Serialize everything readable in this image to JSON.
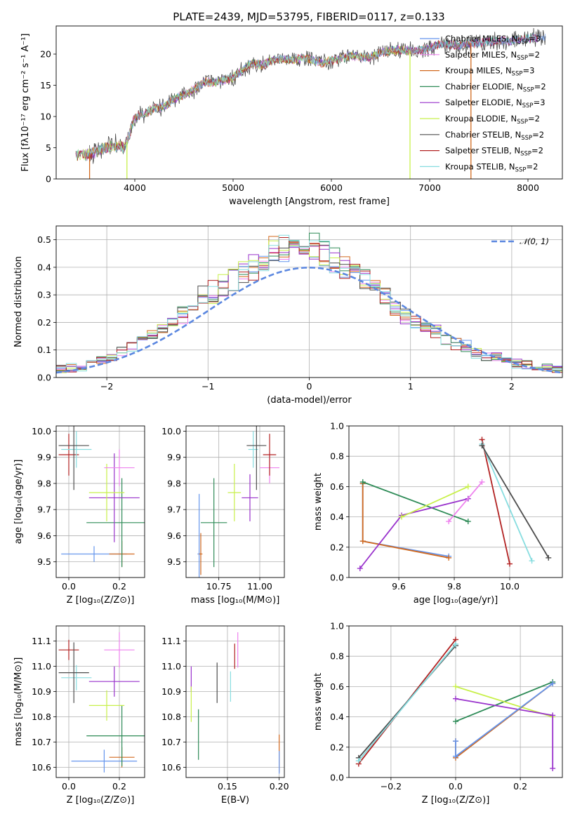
{
  "title": "PLATE=2439, MJD=53795, FIBERID=0117, z=0.133",
  "series": [
    {
      "name": "Chabrier MILES, N<sub>SSP</sub>=3",
      "label": "Chabrier MILES, N",
      "sub": "SSP",
      "suffix": "=3",
      "color": "#6495ed"
    },
    {
      "name": "Salpeter MILES, N<sub>SSP</sub>=2",
      "label": "Salpeter MILES, N",
      "sub": "SSP",
      "suffix": "=2",
      "color": "#ee82ee"
    },
    {
      "name": "Kroupa MILES, N<sub>SSP</sub>=3",
      "label": "Kroupa MILES, N",
      "sub": "SSP",
      "suffix": "=3",
      "color": "#d2691e"
    },
    {
      "name": "Chabrier ELODIE, N<sub>SSP</sub>=2",
      "label": "Chabrier ELODIE, N",
      "sub": "SSP",
      "suffix": "=2",
      "color": "#2e8b57"
    },
    {
      "name": "Salpeter ELODIE, N<sub>SSP</sub>=3",
      "label": "Salpeter ELODIE, N",
      "sub": "SSP",
      "suffix": "=3",
      "color": "#9932cc"
    },
    {
      "name": "Kroupa ELODIE, N<sub>SSP</sub>=2",
      "label": "Kroupa ELODIE, N",
      "sub": "SSP",
      "suffix": "=2",
      "color": "#c8f04a"
    },
    {
      "name": "Chabrier STELIB, N<sub>SSP</sub>=2",
      "label": "Chabrier STELIB, N",
      "sub": "SSP",
      "suffix": "=2",
      "color": "#4d4d4d"
    },
    {
      "name": "Salpeter STELIB, N<sub>SSP</sub>=2",
      "label": "Salpeter STELIB, N",
      "sub": "SSP",
      "suffix": "=2",
      "color": "#b22222"
    },
    {
      "name": "Kroupa STELIB, N<sub>SSP</sub>=2",
      "label": "Kroupa STELIB, N",
      "sub": "SSP",
      "suffix": "=2",
      "color": "#87dde0"
    }
  ],
  "chart_data": [
    {
      "id": "spectrum",
      "type": "line",
      "xlabel": "wavelength [Angstrom, rest frame]",
      "ylabel": "Flux [fλ10⁻¹⁷ erg cm⁻² s⁻¹ A⁻¹]",
      "xlim": [
        3200,
        8350
      ],
      "ylim": [
        0,
        24.5
      ],
      "xticks": [
        4000,
        5000,
        6000,
        7000,
        8000
      ],
      "yticks": [
        0,
        5,
        10,
        15,
        20
      ],
      "grid": false,
      "legend_position": "top-right",
      "continuum": {
        "x": [
          3400,
          3500,
          3600,
          3700,
          3800,
          3900,
          4000,
          4100,
          4200,
          4300,
          4400,
          4500,
          4600,
          4700,
          4800,
          4900,
          5000,
          5100,
          5200,
          5300,
          5400,
          5500,
          5600,
          5700,
          5800,
          5900,
          6000,
          6100,
          6200,
          6300,
          6400,
          6500,
          6600,
          6700,
          6800,
          6900,
          7000,
          7100,
          7200,
          7300,
          7400,
          7500,
          7600,
          7700,
          7800,
          7900,
          8000,
          8100
        ],
        "y": [
          3.8,
          3.9,
          4.3,
          5.0,
          5.3,
          5.0,
          9.8,
          10.5,
          11.3,
          11.6,
          12.8,
          13.5,
          14.3,
          15.5,
          15.5,
          15.8,
          16.2,
          17.5,
          18.5,
          18.3,
          19.0,
          19.2,
          19.0,
          19.4,
          19.2,
          18.5,
          19.0,
          19.3,
          19.8,
          19.5,
          19.5,
          20.2,
          20.5,
          20.7,
          20.5,
          20.7,
          21.0,
          21.5,
          21.5,
          21.3,
          21.7,
          21.8,
          22.0,
          22.0,
          22.1,
          22.3,
          22.5,
          22.7
        ]
      },
      "data_extent": [
        3550,
        7550
      ],
      "dropouts": [
        {
          "x": 3540,
          "series": "Kroupa MILES, N<sub>SSP</sub>=3"
        },
        {
          "x": 3920,
          "series": "Kroupa ELODIE, N<sub>SSP</sub>=2"
        },
        {
          "x": 6800,
          "series": "Kroupa ELODIE, N<sub>SSP</sub>=2"
        },
        {
          "x": 7420,
          "series": "Kroupa MILES, N<sub>SSP</sub>=3"
        }
      ]
    },
    {
      "id": "residuals",
      "type": "histogram",
      "xlabel": "(data-model)/error",
      "ylabel": "Normed distribution",
      "xlim": [
        -2.5,
        2.5
      ],
      "ylim": [
        0,
        0.55
      ],
      "xticks": [
        -2,
        -1,
        0,
        1,
        2
      ],
      "yticks": [
        0.0,
        0.1,
        0.2,
        0.3,
        0.4,
        0.5
      ],
      "grid": true,
      "legend_position": "top-right",
      "reference_curve": {
        "name": "𝒩(0, 1)",
        "mean": 0,
        "sigma": 1,
        "color": "#5b87e0"
      },
      "bins": [
        -2.5,
        -2.4,
        -2.3,
        -2.2,
        -2.1,
        -2.0,
        -1.9,
        -1.8,
        -1.7,
        -1.6,
        -1.5,
        -1.4,
        -1.3,
        -1.2,
        -1.1,
        -1.0,
        -0.9,
        -0.8,
        -0.7,
        -0.6,
        -0.5,
        -0.4,
        -0.3,
        -0.2,
        -0.1,
        0.0,
        0.1,
        0.2,
        0.3,
        0.4,
        0.5,
        0.6,
        0.7,
        0.8,
        0.9,
        1.0,
        1.1,
        1.2,
        1.3,
        1.4,
        1.5,
        1.6,
        1.7,
        1.8,
        1.9,
        2.0,
        2.1,
        2.2,
        2.3,
        2.4,
        2.5
      ],
      "base_density": [
        0.03,
        0.035,
        0.04,
        0.05,
        0.06,
        0.07,
        0.09,
        0.11,
        0.13,
        0.16,
        0.18,
        0.2,
        0.23,
        0.26,
        0.29,
        0.31,
        0.33,
        0.36,
        0.38,
        0.4,
        0.43,
        0.45,
        0.46,
        0.47,
        0.48,
        0.47,
        0.45,
        0.42,
        0.4,
        0.37,
        0.35,
        0.32,
        0.29,
        0.25,
        0.22,
        0.2,
        0.18,
        0.17,
        0.14,
        0.12,
        0.11,
        0.09,
        0.08,
        0.07,
        0.06,
        0.05,
        0.045,
        0.04,
        0.035,
        0.03
      ]
    },
    {
      "id": "age-vs-Z",
      "type": "scatter",
      "xlabel": "Z [log₁₀(Z/Z⊙)]",
      "ylabel": "age  [log₁₀(age/yr)]",
      "xlim": [
        -0.05,
        0.3
      ],
      "ylim": [
        9.44,
        10.02
      ],
      "xticks": [
        0.0,
        0.2
      ],
      "yticks": [
        9.5,
        9.6,
        9.7,
        9.8,
        9.9,
        10.0
      ],
      "grid": true,
      "points": [
        {
          "series": "Chabrier MILES, N<sub>SSP</sub>=3",
          "x": 0.1,
          "y": 9.53,
          "xerr": 0.13,
          "yerr": 0.03
        },
        {
          "series": "Kroupa MILES, N<sub>SSP</sub>=3",
          "x": 0.21,
          "y": 9.53,
          "xerr": 0.05,
          "yerr": 0.05
        },
        {
          "series": "Chabrier ELODIE, N<sub>SSP</sub>=2",
          "x": 0.21,
          "y": 9.65,
          "xerr": 0.14,
          "yerr": 0.17
        },
        {
          "series": "Salpeter ELODIE, N<sub>SSP</sub>=3",
          "x": 0.18,
          "y": 9.745,
          "xerr": 0.1,
          "yerr": 0.17
        },
        {
          "series": "Kroupa ELODIE, N<sub>SSP</sub>=2",
          "x": 0.15,
          "y": 9.765,
          "xerr": 0.07,
          "yerr": 0.11
        },
        {
          "series": "Salpeter MILES, N<sub>SSP</sub>=2",
          "x": 0.2,
          "y": 9.86,
          "xerr": 0.06,
          "yerr": 0.07
        },
        {
          "series": "Salpeter STELIB, N<sub>SSP</sub>=2",
          "x": 0.0,
          "y": 9.91,
          "xerr": 0.04,
          "yerr": 0.08
        },
        {
          "series": "Kroupa STELIB, N<sub>SSP</sub>=2",
          "x": 0.03,
          "y": 9.93,
          "xerr": 0.06,
          "yerr": 0.07
        },
        {
          "series": "Chabrier STELIB, N<sub>SSP</sub>=2",
          "x": 0.02,
          "y": 9.945,
          "xerr": 0.06,
          "yerr": 0.17
        }
      ]
    },
    {
      "id": "age-vs-mass",
      "type": "scatter",
      "xlabel": "mass [log₁₀(M/M⊙)]",
      "ylabel": "",
      "xlim": [
        10.55,
        11.15
      ],
      "ylim": [
        9.44,
        10.02
      ],
      "xticks": [
        10.75,
        11.0
      ],
      "yticks": [
        9.5,
        9.6,
        9.7,
        9.8,
        9.9,
        10.0
      ],
      "grid": true,
      "points": [
        {
          "series": "Chabrier MILES, N<sub>SSP</sub>=3",
          "x": 10.63,
          "y": 9.53,
          "xerr": 0.01,
          "yerr": 0.23
        },
        {
          "series": "Kroupa MILES, N<sub>SSP</sub>=3",
          "x": 10.64,
          "y": 9.53,
          "xerr": 0.01,
          "yerr": 0.08
        },
        {
          "series": "Chabrier ELODIE, N<sub>SSP</sub>=2",
          "x": 10.72,
          "y": 9.65,
          "xerr": 0.08,
          "yerr": 0.17
        },
        {
          "series": "Salpeter ELODIE, N<sub>SSP</sub>=3",
          "x": 10.94,
          "y": 9.745,
          "xerr": 0.05,
          "yerr": 0.09
        },
        {
          "series": "Kroupa ELODIE, N<sub>SSP</sub>=2",
          "x": 10.845,
          "y": 9.765,
          "xerr": 0.04,
          "yerr": 0.11
        },
        {
          "series": "Salpeter MILES, N<sub>SSP</sub>=2",
          "x": 11.06,
          "y": 9.86,
          "xerr": 0.06,
          "yerr": 0.06
        },
        {
          "series": "Salpeter STELIB, N<sub>SSP</sub>=2",
          "x": 11.06,
          "y": 9.91,
          "xerr": 0.04,
          "yerr": 0.08
        },
        {
          "series": "Kroupa STELIB, N<sub>SSP</sub>=2",
          "x": 10.96,
          "y": 9.93,
          "xerr": 0.03,
          "yerr": 0.07
        },
        {
          "series": "Chabrier STELIB, N<sub>SSP</sub>=2",
          "x": 10.98,
          "y": 9.945,
          "xerr": 0.06,
          "yerr": 0.17
        }
      ]
    },
    {
      "id": "weight-vs-age",
      "type": "line",
      "xlabel": "age  [log₁₀(age/yr)]",
      "ylabel": "mass weight",
      "xlim": [
        9.42,
        10.19
      ],
      "ylim": [
        0,
        1.0
      ],
      "xticks": [
        9.6,
        9.8,
        10.0
      ],
      "yticks": [
        0.0,
        0.2,
        0.4,
        0.6,
        0.8,
        1.0
      ],
      "grid": true,
      "lines": [
        {
          "series": "Chabrier MILES, N<sub>SSP</sub>=3",
          "x": [
            9.47,
            9.47,
            9.78
          ],
          "y": [
            0.62,
            0.24,
            0.14
          ]
        },
        {
          "series": "Kroupa MILES, N<sub>SSP</sub>=3",
          "x": [
            9.47,
            9.47,
            9.78
          ],
          "y": [
            0.62,
            0.24,
            0.13
          ]
        },
        {
          "series": "Chabrier ELODIE, N<sub>SSP</sub>=2",
          "x": [
            9.47,
            9.85
          ],
          "y": [
            0.63,
            0.37
          ]
        },
        {
          "series": "Salpeter ELODIE, N<sub>SSP</sub>=3",
          "x": [
            9.46,
            9.61,
            9.85
          ],
          "y": [
            0.06,
            0.41,
            0.52
          ]
        },
        {
          "series": "Kroupa ELODIE, N<sub>SSP</sub>=2",
          "x": [
            9.61,
            9.85
          ],
          "y": [
            0.4,
            0.6
          ]
        },
        {
          "series": "Salpeter MILES, N<sub>SSP</sub>=2",
          "x": [
            9.78,
            9.9
          ],
          "y": [
            0.37,
            0.63
          ]
        },
        {
          "series": "Salpeter STELIB, N<sub>SSP</sub>=2",
          "x": [
            9.9,
            10.0
          ],
          "y": [
            0.91,
            0.09
          ]
        },
        {
          "series": "Kroupa STELIB, N<sub>SSP</sub>=2",
          "x": [
            9.9,
            10.08
          ],
          "y": [
            0.88,
            0.11
          ]
        },
        {
          "series": "Chabrier STELIB, N<sub>SSP</sub>=2",
          "x": [
            9.9,
            10.14
          ],
          "y": [
            0.87,
            0.13
          ]
        }
      ]
    },
    {
      "id": "mass-vs-Z",
      "type": "scatter",
      "xlabel": "Z [log₁₀(Z/Z⊙)]",
      "ylabel": "mass [log₁₀(M/M⊙)]",
      "xlim": [
        -0.05,
        0.3
      ],
      "ylim": [
        10.56,
        11.16
      ],
      "xticks": [
        0.0,
        0.2
      ],
      "yticks": [
        10.6,
        10.7,
        10.8,
        10.9,
        11.0,
        11.1
      ],
      "grid": true,
      "points": [
        {
          "series": "Chabrier MILES, N<sub>SSP</sub>=3",
          "x": 0.14,
          "y": 10.625,
          "xerr": 0.13,
          "yerr": 0.045
        },
        {
          "series": "Kroupa MILES, N<sub>SSP</sub>=3",
          "x": 0.21,
          "y": 10.64,
          "xerr": 0.05,
          "yerr": 0.04
        },
        {
          "series": "Chabrier ELODIE, N<sub>SSP</sub>=2",
          "x": 0.21,
          "y": 10.725,
          "xerr": 0.14,
          "yerr": 0.12
        },
        {
          "series": "Salpeter ELODIE, N<sub>SSP</sub>=3",
          "x": 0.18,
          "y": 10.94,
          "xerr": 0.1,
          "yerr": 0.06
        },
        {
          "series": "Kroupa ELODIE, N<sub>SSP</sub>=2",
          "x": 0.15,
          "y": 10.845,
          "xerr": 0.07,
          "yerr": 0.06
        },
        {
          "series": "Salpeter MILES, N<sub>SSP</sub>=2",
          "x": 0.2,
          "y": 11.065,
          "xerr": 0.06,
          "yerr": 0.07
        },
        {
          "series": "Salpeter STELIB, N<sub>SSP</sub>=2",
          "x": 0.0,
          "y": 11.065,
          "xerr": 0.04,
          "yerr": 0.04
        },
        {
          "series": "Kroupa STELIB, N<sub>SSP</sub>=2",
          "x": 0.03,
          "y": 10.955,
          "xerr": 0.06,
          "yerr": 0.05
        },
        {
          "series": "Chabrier STELIB, N<sub>SSP</sub>=2",
          "x": 0.02,
          "y": 10.975,
          "xerr": 0.06,
          "yerr": 0.12
        }
      ]
    },
    {
      "id": "mass-vs-EBV",
      "type": "scatter",
      "xlabel": "E(B-V)",
      "ylabel": "",
      "xlim": [
        0.11,
        0.205
      ],
      "ylim": [
        10.56,
        11.16
      ],
      "xticks": [
        0.1,
        0.15,
        0.2
      ],
      "yticks": [
        10.6,
        10.7,
        10.8,
        10.9,
        11.0,
        11.1
      ],
      "grid": true,
      "points": [
        {
          "series": "Kroupa MILES, N<sub>SSP</sub>=3",
          "x": 0.2,
          "y": 10.655,
          "xerr": 0.0,
          "yerr": 0.075
        },
        {
          "series": "Chabrier MILES, N<sub>SSP</sub>=3",
          "x": 0.2,
          "y": 10.62,
          "xerr": 0.0,
          "yerr": 0.045
        },
        {
          "series": "Chabrier ELODIE, N<sub>SSP</sub>=2",
          "x": 0.122,
          "y": 10.73,
          "xerr": 0.0,
          "yerr": 0.1
        },
        {
          "series": "Salpeter ELODIE, N<sub>SSP</sub>=3",
          "x": 0.115,
          "y": 10.95,
          "xerr": 0.0,
          "yerr": 0.05
        },
        {
          "series": "Kroupa ELODIE, N<sub>SSP</sub>=2",
          "x": 0.115,
          "y": 10.85,
          "xerr": 0.0,
          "yerr": 0.07
        },
        {
          "series": "Salpeter MILES, N<sub>SSP</sub>=2",
          "x": 0.16,
          "y": 11.065,
          "xerr": 0.0,
          "yerr": 0.07
        },
        {
          "series": "Salpeter STELIB, N<sub>SSP</sub>=2",
          "x": 0.157,
          "y": 11.04,
          "xerr": 0.0,
          "yerr": 0.05
        },
        {
          "series": "Kroupa STELIB, N<sub>SSP</sub>=2",
          "x": 0.153,
          "y": 10.92,
          "xerr": 0.0,
          "yerr": 0.06
        },
        {
          "series": "Chabrier STELIB, N<sub>SSP</sub>=2",
          "x": 0.14,
          "y": 10.935,
          "xerr": 0.0,
          "yerr": 0.08
        }
      ]
    },
    {
      "id": "weight-vs-Z",
      "type": "line",
      "xlabel": "Z [log₁₀(Z/Z⊙)]",
      "ylabel": "mass weight",
      "xlim": [
        -0.33,
        0.33
      ],
      "ylim": [
        0,
        1.0
      ],
      "xticks": [
        -0.2,
        0.0,
        0.2
      ],
      "yticks": [
        0.0,
        0.2,
        0.4,
        0.6,
        0.8,
        1.0
      ],
      "grid": true,
      "lines": [
        {
          "series": "Salpeter STELIB, N<sub>SSP</sub>=2",
          "x": [
            -0.3,
            0.0
          ],
          "y": [
            0.09,
            0.91
          ]
        },
        {
          "series": "Chabrier STELIB, N<sub>SSP</sub>=2",
          "x": [
            -0.3,
            0.0
          ],
          "y": [
            0.13,
            0.87
          ]
        },
        {
          "series": "Kroupa STELIB, N<sub>SSP</sub>=2",
          "x": [
            -0.3,
            0.0
          ],
          "y": [
            0.11,
            0.88
          ]
        },
        {
          "series": "Chabrier ELODIE, N<sub>SSP</sub>=2",
          "x": [
            0.0,
            0.3
          ],
          "y": [
            0.37,
            0.63
          ]
        },
        {
          "series": "Kroupa ELODIE, N<sub>SSP</sub>=2",
          "x": [
            0.0,
            0.3
          ],
          "y": [
            0.6,
            0.4
          ]
        },
        {
          "series": "Salpeter ELODIE, N<sub>SSP</sub>=3",
          "x": [
            0.0,
            0.3,
            0.3
          ],
          "y": [
            0.52,
            0.41,
            0.06
          ]
        },
        {
          "series": "Kroupa MILES, N<sub>SSP</sub>=3",
          "x": [
            0.0,
            0.0,
            0.3
          ],
          "y": [
            0.24,
            0.13,
            0.62
          ]
        },
        {
          "series": "Chabrier MILES, N<sub>SSP</sub>=3",
          "x": [
            0.0,
            0.0,
            0.3
          ],
          "y": [
            0.24,
            0.14,
            0.62
          ]
        }
      ]
    }
  ]
}
